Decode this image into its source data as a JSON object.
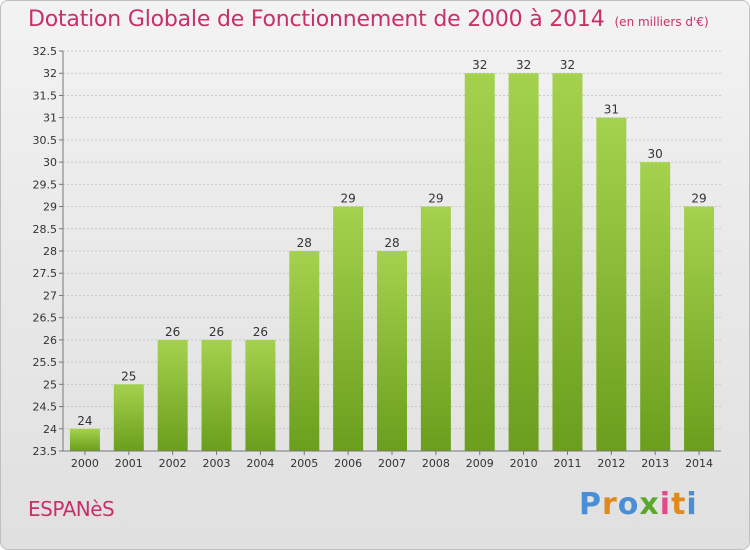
{
  "header": {
    "title": "Dotation Globale de Fonctionnement de 2000 à 2014",
    "subtitle": "(en milliers d'€)"
  },
  "footer": {
    "place": "ESPANèS",
    "logo": "Proxiti"
  },
  "colors": {
    "title": "#c8306a",
    "bar_top": "#a5d24e",
    "bar_bottom": "#6a9e1c"
  },
  "chart_data": {
    "type": "bar",
    "categories": [
      "2000",
      "2001",
      "2002",
      "2003",
      "2004",
      "2005",
      "2006",
      "2007",
      "2008",
      "2009",
      "2010",
      "2011",
      "2012",
      "2013",
      "2014"
    ],
    "values": [
      24,
      25,
      26,
      26,
      26,
      28,
      29,
      28,
      29,
      32,
      32,
      32,
      31,
      30,
      29
    ],
    "data_labels": [
      "24",
      "25",
      "26",
      "26",
      "26",
      "28",
      "29",
      "28",
      "29",
      "32",
      "32",
      "32",
      "31",
      "30",
      "29"
    ],
    "yticks": [
      "23.5",
      "24",
      "24.5",
      "25",
      "25.5",
      "26",
      "26.5",
      "27",
      "27.5",
      "28",
      "28.5",
      "29",
      "29.5",
      "30",
      "30.5",
      "31",
      "31.5",
      "32",
      "32.5"
    ],
    "ylim": [
      23.5,
      32.5
    ],
    "title": "Dotation Globale de Fonctionnement de 2000 à 2014",
    "xlabel": "",
    "ylabel": "",
    "grid": true,
    "legend": "none"
  }
}
